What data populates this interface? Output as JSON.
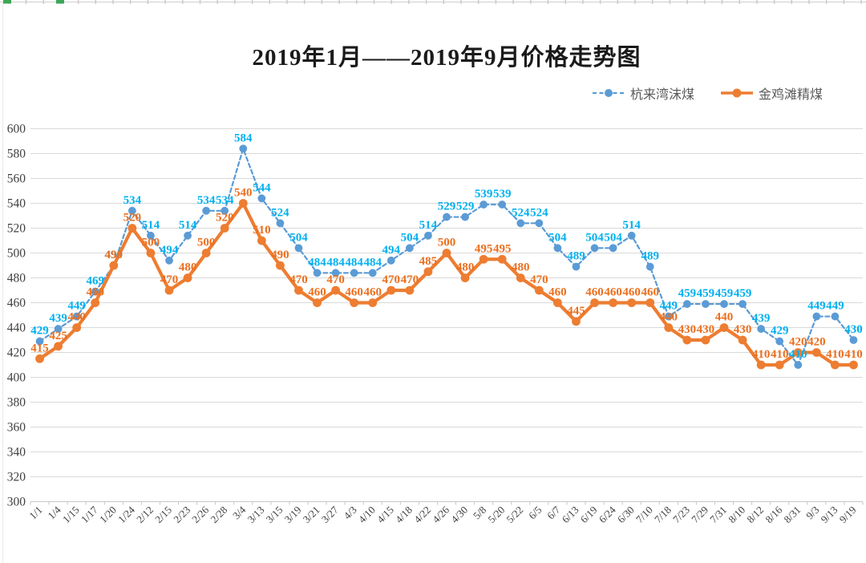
{
  "spreadsheet_chrome": {
    "border_color": "#D9D9D9",
    "tick_color": "#C9C9C9",
    "selection_color": "#3BA757"
  },
  "chart_data": {
    "type": "line",
    "title": "2019年1月——2019年9月价格走势图",
    "categories": [
      "1/1",
      "1/4",
      "1/15",
      "1/17",
      "1/20",
      "1/24",
      "2/12",
      "2/15",
      "2/23",
      "2/26",
      "2/28",
      "3/4",
      "3/13",
      "3/15",
      "3/19",
      "3/21",
      "3/27",
      "4/3",
      "4/10",
      "4/15",
      "4/18",
      "4/22",
      "4/26",
      "4/30",
      "5/8",
      "5/20",
      "5/22",
      "6/5",
      "6/7",
      "6/13",
      "6/19",
      "6/24",
      "6/30",
      "7/10",
      "7/18",
      "7/23",
      "7/29",
      "7/31",
      "8/10",
      "8/12",
      "8/16",
      "8/31",
      "9/3",
      "9/13",
      "9/19"
    ],
    "series": [
      {
        "name": "杭来湾沫煤",
        "line_style": "dashed",
        "color": "#5B9BD5",
        "label_color": "#00B0F0",
        "values": [
          429,
          439,
          449,
          469,
          490,
          534,
          514,
          494,
          514,
          534,
          534,
          584,
          544,
          524,
          504,
          484,
          484,
          484,
          484,
          494,
          504,
          514,
          529,
          529,
          539,
          539,
          524,
          524,
          504,
          489,
          504,
          504,
          514,
          489,
          449,
          459,
          459,
          459,
          459,
          439,
          429,
          410,
          449,
          449,
          430
        ]
      },
      {
        "name": "金鸡滩精煤",
        "line_style": "solid",
        "color": "#ED7D31",
        "label_color": "#EC6F1E",
        "values": [
          415,
          425,
          440,
          460,
          490,
          520,
          500,
          470,
          480,
          500,
          520,
          540,
          510,
          490,
          470,
          460,
          470,
          460,
          460,
          470,
          470,
          485,
          500,
          480,
          495,
          495,
          480,
          470,
          460,
          445,
          460,
          460,
          460,
          460,
          440,
          430,
          430,
          440,
          430,
          410,
          410,
          420,
          420,
          410,
          410
        ]
      }
    ],
    "ylim": [
      300,
      600
    ],
    "ytick_step": 20,
    "grid": true,
    "data_labels": true,
    "legend_position": "top-right",
    "x_label_rotation": 45
  }
}
